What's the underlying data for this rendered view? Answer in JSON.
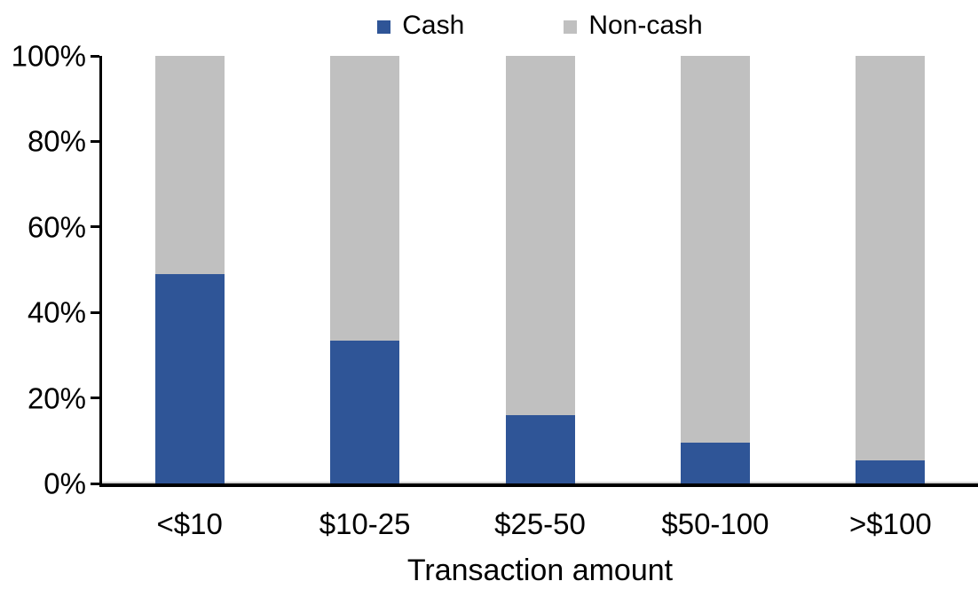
{
  "chart_data": {
    "type": "bar",
    "stacked": true,
    "percent_stacked": true,
    "title": "",
    "xlabel": "Transaction amount",
    "ylabel": "",
    "categories": [
      "<$10",
      "$10-25",
      "$25-50",
      "$50-100",
      ">$100"
    ],
    "series": [
      {
        "name": "Cash",
        "color": "#2F5597",
        "values": [
          49,
          33.5,
          16,
          9.5,
          5.5
        ]
      },
      {
        "name": "Non-cash",
        "color": "#C0C0C0",
        "values": [
          51,
          66.5,
          84,
          90.5,
          94.5
        ]
      }
    ],
    "ylim": [
      0,
      100
    ],
    "yticks": [
      "0%",
      "20%",
      "40%",
      "60%",
      "80%",
      "100%"
    ],
    "grid": false,
    "legend_position": "top-center",
    "axis_color": "#000000",
    "background_color": "#FFFFFF"
  }
}
